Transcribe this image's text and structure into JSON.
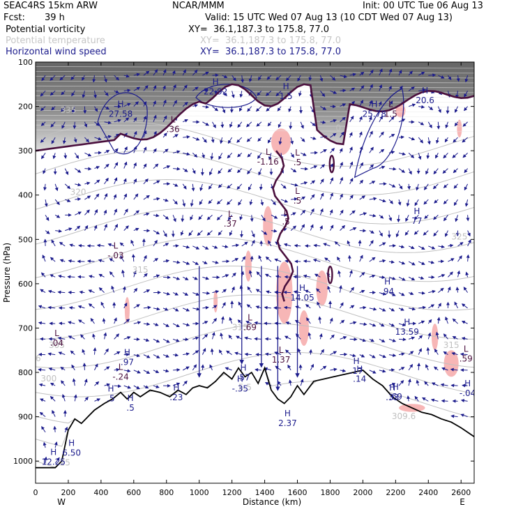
{
  "header": {
    "model": "SEAC4RS 15km ARW",
    "org": "NCAR/MMM",
    "init": "Init: 00 UTC Tue 06 Aug 13",
    "fcst_label": "Fcst:",
    "fcst_value": "39 h",
    "valid": "Valid: 15 UTC Wed 07 Aug 13 (10 CDT Wed 07 Aug 13)"
  },
  "legend": [
    {
      "label": "Potential vorticity",
      "xy": "XY=  36.1,187.3 to 175.8, 77.0",
      "color": "#000000"
    },
    {
      "label": "Potential temperature",
      "xy": "XY=  36.1,187.3 to 175.8, 77.0",
      "color": "#c6c6c6"
    },
    {
      "label": "Horizontal wind speed",
      "xy": "XY=  36.1,187.3 to 175.8, 77.0",
      "color": "#1b1b8c"
    }
  ],
  "colors": {
    "pv_line": "#4a0f3d",
    "wind": "#1b1b8c",
    "theta": "#c0c0c0",
    "fill": "#f7b6b6",
    "stratosphere_shade": "#6e6e6e",
    "terrain": "#000000"
  },
  "chart_data": {
    "type": "cross-section",
    "xlabel": "Distance (km)",
    "ylabel": "Pressure (hPa)",
    "x_ticks": [
      0,
      200,
      400,
      600,
      800,
      1000,
      1200,
      1400,
      1600,
      1800,
      2000,
      2200,
      2400,
      2600
    ],
    "y_ticks": [
      100,
      200,
      300,
      400,
      500,
      600,
      700,
      800,
      900,
      1000
    ],
    "xlim": [
      0,
      2680
    ],
    "ylim": [
      1050,
      100
    ],
    "left_end": "W",
    "right_end": "E",
    "terrain_profile": [
      [
        0,
        1015
      ],
      [
        120,
        1015
      ],
      [
        160,
        1000
      ],
      [
        200,
        930
      ],
      [
        240,
        905
      ],
      [
        280,
        915
      ],
      [
        320,
        900
      ],
      [
        360,
        885
      ],
      [
        420,
        870
      ],
      [
        470,
        860
      ],
      [
        520,
        845
      ],
      [
        560,
        860
      ],
      [
        600,
        845
      ],
      [
        640,
        855
      ],
      [
        700,
        840
      ],
      [
        760,
        845
      ],
      [
        820,
        855
      ],
      [
        870,
        840
      ],
      [
        920,
        850
      ],
      [
        960,
        835
      ],
      [
        1000,
        830
      ],
      [
        1050,
        835
      ],
      [
        1100,
        820
      ],
      [
        1150,
        800
      ],
      [
        1200,
        815
      ],
      [
        1240,
        790
      ],
      [
        1280,
        810
      ],
      [
        1320,
        800
      ],
      [
        1360,
        825
      ],
      [
        1400,
        790
      ],
      [
        1440,
        840
      ],
      [
        1480,
        860
      ],
      [
        1520,
        870
      ],
      [
        1560,
        855
      ],
      [
        1600,
        830
      ],
      [
        1640,
        850
      ],
      [
        1700,
        820
      ],
      [
        1760,
        815
      ],
      [
        1820,
        810
      ],
      [
        1880,
        805
      ],
      [
        1940,
        800
      ],
      [
        2000,
        795
      ],
      [
        2060,
        815
      ],
      [
        2120,
        830
      ],
      [
        2180,
        855
      ],
      [
        2240,
        870
      ],
      [
        2300,
        880
      ],
      [
        2360,
        890
      ],
      [
        2420,
        895
      ],
      [
        2480,
        905
      ],
      [
        2540,
        912
      ],
      [
        2600,
        925
      ],
      [
        2680,
        945
      ]
    ],
    "theta_labels": [
      {
        "x": 200,
        "p": 215,
        "text": "335"
      },
      {
        "x": 130,
        "p": 745,
        "text": "305"
      },
      {
        "x": 80,
        "p": 820,
        "text": "300"
      },
      {
        "x": 260,
        "p": 400,
        "text": "320"
      },
      {
        "x": 640,
        "p": 575,
        "text": "315"
      },
      {
        "x": 1250,
        "p": 705,
        "text": "315"
      },
      {
        "x": 1280,
        "p": 840,
        "text": "5.5"
      },
      {
        "x": 1850,
        "p": 255,
        "text": "0"
      },
      {
        "x": 2590,
        "p": 500,
        "text": "325"
      },
      {
        "x": 2540,
        "p": 745,
        "text": "315"
      },
      {
        "x": 2250,
        "p": 905,
        "text": "309.6"
      },
      {
        "x": 0,
        "p": 775,
        "text": "36"
      },
      {
        "x": 180,
        "p": 1010,
        "text": "25"
      }
    ],
    "extrema_labels": [
      {
        "kind": "H",
        "value": "27.58",
        "x": 520,
        "p": 220
      },
      {
        "kind": "H",
        "value": "22.92",
        "x": 1100,
        "p": 170
      },
      {
        "kind": "H",
        "value": "1.5",
        "x": 1530,
        "p": 180
      },
      {
        "kind": "H",
        "value": "25.78",
        "x": 2070,
        "p": 220
      },
      {
        "kind": "H",
        "value": "20.6",
        "x": 2380,
        "p": 190
      },
      {
        "kind": "L",
        "value": "1.5",
        "x": 2170,
        "p": 220
      },
      {
        "kind": "L",
        "value": ".36",
        "x": 840,
        "p": 255
      },
      {
        "kind": "L",
        "value": "-1.16",
        "x": 1420,
        "p": 328
      },
      {
        "kind": "L",
        "value": ".5",
        "x": 1600,
        "p": 330
      },
      {
        "kind": "L",
        "value": ".5",
        "x": 1600,
        "p": 416
      },
      {
        "kind": "L",
        "value": ".37",
        "x": 1190,
        "p": 468
      },
      {
        "kind": "L",
        "value": ".5",
        "x": 1530,
        "p": 463
      },
      {
        "kind": "L",
        "value": "-.03",
        "x": 490,
        "p": 540
      },
      {
        "kind": "H",
        "value": "77",
        "x": 2330,
        "p": 462
      },
      {
        "kind": "H",
        "value": ".94",
        "x": 2150,
        "p": 621
      },
      {
        "kind": "H",
        "value": "14.05",
        "x": 1630,
        "p": 635
      },
      {
        "kind": "H",
        "value": "13.59",
        "x": 2270,
        "p": 712
      },
      {
        "kind": "L",
        "value": ".69",
        "x": 1310,
        "p": 702
      },
      {
        "kind": "L",
        "value": "1.37",
        "x": 1500,
        "p": 775
      },
      {
        "kind": "L",
        "value": ".04",
        "x": 130,
        "p": 737
      },
      {
        "kind": "L",
        "value": ".59",
        "x": 2630,
        "p": 772
      },
      {
        "kind": "H",
        "value": ".97",
        "x": 560,
        "p": 780
      },
      {
        "kind": "L",
        "value": "-.24",
        "x": 520,
        "p": 813
      },
      {
        "kind": "H",
        "value": ".17",
        "x": 1960,
        "p": 800
      },
      {
        "kind": "H",
        "value": ".14",
        "x": 1980,
        "p": 818
      },
      {
        "kind": "H",
        "value": ".57",
        "x": 1270,
        "p": 815
      },
      {
        "kind": "H",
        "value": "-.35",
        "x": 1250,
        "p": 840
      },
      {
        "kind": "H",
        "value": ".23",
        "x": 860,
        "p": 860
      },
      {
        "kind": "H",
        "value": ".5",
        "x": 460,
        "p": 862
      },
      {
        "kind": "H",
        "value": ".33",
        "x": 2180,
        "p": 860
      },
      {
        "kind": "H",
        "value": ".69",
        "x": 2200,
        "p": 858
      },
      {
        "kind": "H",
        "value": "-.04",
        "x": 2640,
        "p": 850
      },
      {
        "kind": "H",
        "value": ".5",
        "x": 580,
        "p": 883
      },
      {
        "kind": "H",
        "value": "2.37",
        "x": 1540,
        "p": 918
      },
      {
        "kind": "H",
        "value": "6.50",
        "x": 220,
        "p": 985
      },
      {
        "kind": "H",
        "value": "12.25",
        "x": 110,
        "p": 1005
      }
    ]
  }
}
